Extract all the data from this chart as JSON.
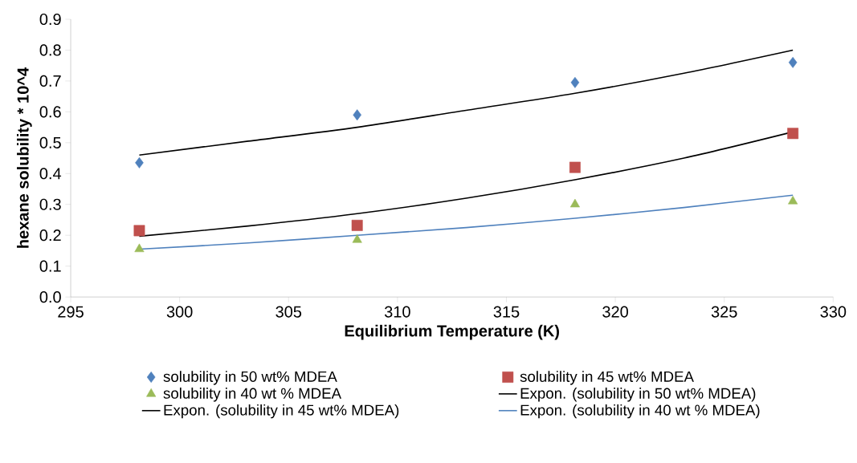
{
  "chart_data": {
    "type": "scatter",
    "xlabel": "Equilibrium Temperature  (K)",
    "ylabel": "hexane solubility * 10^4",
    "xlim": [
      295,
      330
    ],
    "xticks": [
      295,
      300,
      305,
      310,
      315,
      320,
      325,
      330
    ],
    "ylim": [
      0,
      0.9
    ],
    "yticks": [
      {
        "value": 0,
        "label": "0.0"
      },
      0.1,
      0.2,
      0.3,
      0.4,
      0.5,
      0.6,
      0.7,
      0.8,
      0.9
    ],
    "grid": false,
    "legend": "bottom",
    "series": [
      {
        "name": "solubility in 50 wt% MDEA",
        "type": "scatter",
        "marker": "diamond",
        "color": "#4f81bd",
        "x": [
          298.15,
          308.15,
          318.15,
          328.15
        ],
        "values": [
          0.435,
          0.59,
          0.695,
          0.76
        ]
      },
      {
        "name": "solubility in 45 wt% MDEA",
        "type": "scatter",
        "marker": "square",
        "color": "#c0504d",
        "x": [
          298.15,
          308.15,
          318.15,
          328.15
        ],
        "values": [
          0.215,
          0.232,
          0.42,
          0.53
        ]
      },
      {
        "name": "solubility in 40 wt % MDEA",
        "type": "scatter",
        "marker": "triangle",
        "color": "#9bbb59",
        "x": [
          298.15,
          308.15,
          318.15,
          328.15
        ],
        "values": [
          0.155,
          0.185,
          0.3,
          0.31
        ]
      },
      {
        "name": "Expon. (solubility in 50 wt% MDEA)",
        "type": "line",
        "marker": "none",
        "line_style": "solid",
        "color": "#000000",
        "x": [
          298.15,
          303.15,
          308.15,
          313.15,
          318.15,
          323.15,
          328.15
        ],
        "values": [
          0.46,
          0.505,
          0.55,
          0.605,
          0.66,
          0.725,
          0.8
        ]
      },
      {
        "name": "Expon. (solubility in 45 wt% MDEA)",
        "type": "line",
        "marker": "none",
        "line_style": "solid",
        "color": "#000000",
        "x": [
          298.15,
          303.15,
          308.15,
          313.15,
          318.15,
          323.15,
          328.15
        ],
        "values": [
          0.197,
          0.23,
          0.27,
          0.32,
          0.38,
          0.45,
          0.535
        ]
      },
      {
        "name": "Expon. (solubility in 40 wt % MDEA)",
        "type": "line",
        "marker": "none",
        "line_style": "solid",
        "color": "#4f81bd",
        "x": [
          298.15,
          303.15,
          308.15,
          313.15,
          318.15,
          323.15,
          328.15
        ],
        "values": [
          0.155,
          0.175,
          0.2,
          0.225,
          0.255,
          0.29,
          0.33
        ]
      }
    ]
  }
}
